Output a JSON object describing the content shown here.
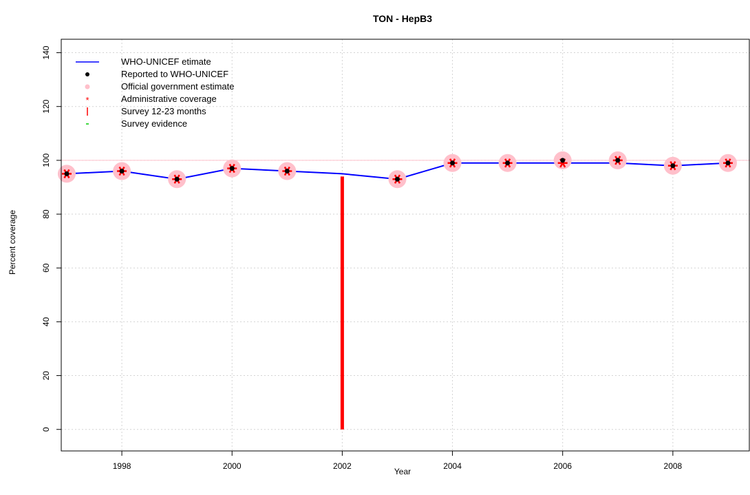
{
  "chart_data": {
    "type": "line",
    "title": "TON  -  HepB3",
    "xlabel": "Year",
    "ylabel": "Percent coverage",
    "xlim": [
      1996.9,
      2009.4
    ],
    "ylim": [
      -8,
      145
    ],
    "x_ticks": [
      1998,
      2000,
      2002,
      2004,
      2006,
      2008
    ],
    "y_ticks": [
      0,
      20,
      40,
      60,
      80,
      100,
      120,
      140
    ],
    "grid": true,
    "reference_line": 100,
    "legend_position": "top-left",
    "legend": [
      {
        "label": "WHO-UNICEF etimate",
        "marker": "line",
        "color": "#0000ff"
      },
      {
        "label": "Reported to WHO-UNICEF",
        "marker": "dot",
        "color": "#000000"
      },
      {
        "label": "Official government estimate",
        "marker": "pink-dot",
        "color": "#ffc0cb"
      },
      {
        "label": "Administrative coverage",
        "marker": "star",
        "color": "#ff0000"
      },
      {
        "label": "Survey 12-23 months",
        "marker": "vbar",
        "color": "#ff0000"
      },
      {
        "label": "Survey evidence",
        "marker": "dash",
        "color": "#00cc00"
      }
    ],
    "series": [
      {
        "name": "WHO-UNICEF etimate",
        "x": [
          1997,
          1998,
          1999,
          2000,
          2001,
          2002,
          2003,
          2004,
          2005,
          2006,
          2007,
          2008,
          2009
        ],
        "values": [
          95,
          96,
          93,
          97,
          96,
          95,
          93,
          99,
          99,
          99,
          99,
          98,
          99
        ]
      },
      {
        "name": "Reported to WHO-UNICEF",
        "x": [
          1997,
          1998,
          1999,
          2000,
          2001,
          2003,
          2004,
          2005,
          2006,
          2007,
          2008,
          2009
        ],
        "values": [
          95,
          96,
          93,
          97,
          96,
          93,
          99,
          99,
          100,
          100,
          98,
          99
        ]
      },
      {
        "name": "Official government estimate",
        "x": [
          1997,
          1998,
          1999,
          2000,
          2001,
          2003,
          2004,
          2005,
          2006,
          2007,
          2008,
          2009
        ],
        "values": [
          95,
          96,
          93,
          97,
          96,
          93,
          99,
          99,
          100,
          100,
          98,
          99
        ]
      },
      {
        "name": "Administrative coverage",
        "x": [
          1997,
          1998,
          1999,
          2000,
          2001,
          2003,
          2004,
          2005,
          2006,
          2007,
          2008,
          2009
        ],
        "values": [
          95,
          96,
          93,
          97,
          96,
          93,
          99,
          99,
          99,
          100,
          98,
          99
        ]
      },
      {
        "name": "Survey 12-23 months",
        "x": [
          2002
        ],
        "values": [
          94
        ]
      }
    ]
  }
}
